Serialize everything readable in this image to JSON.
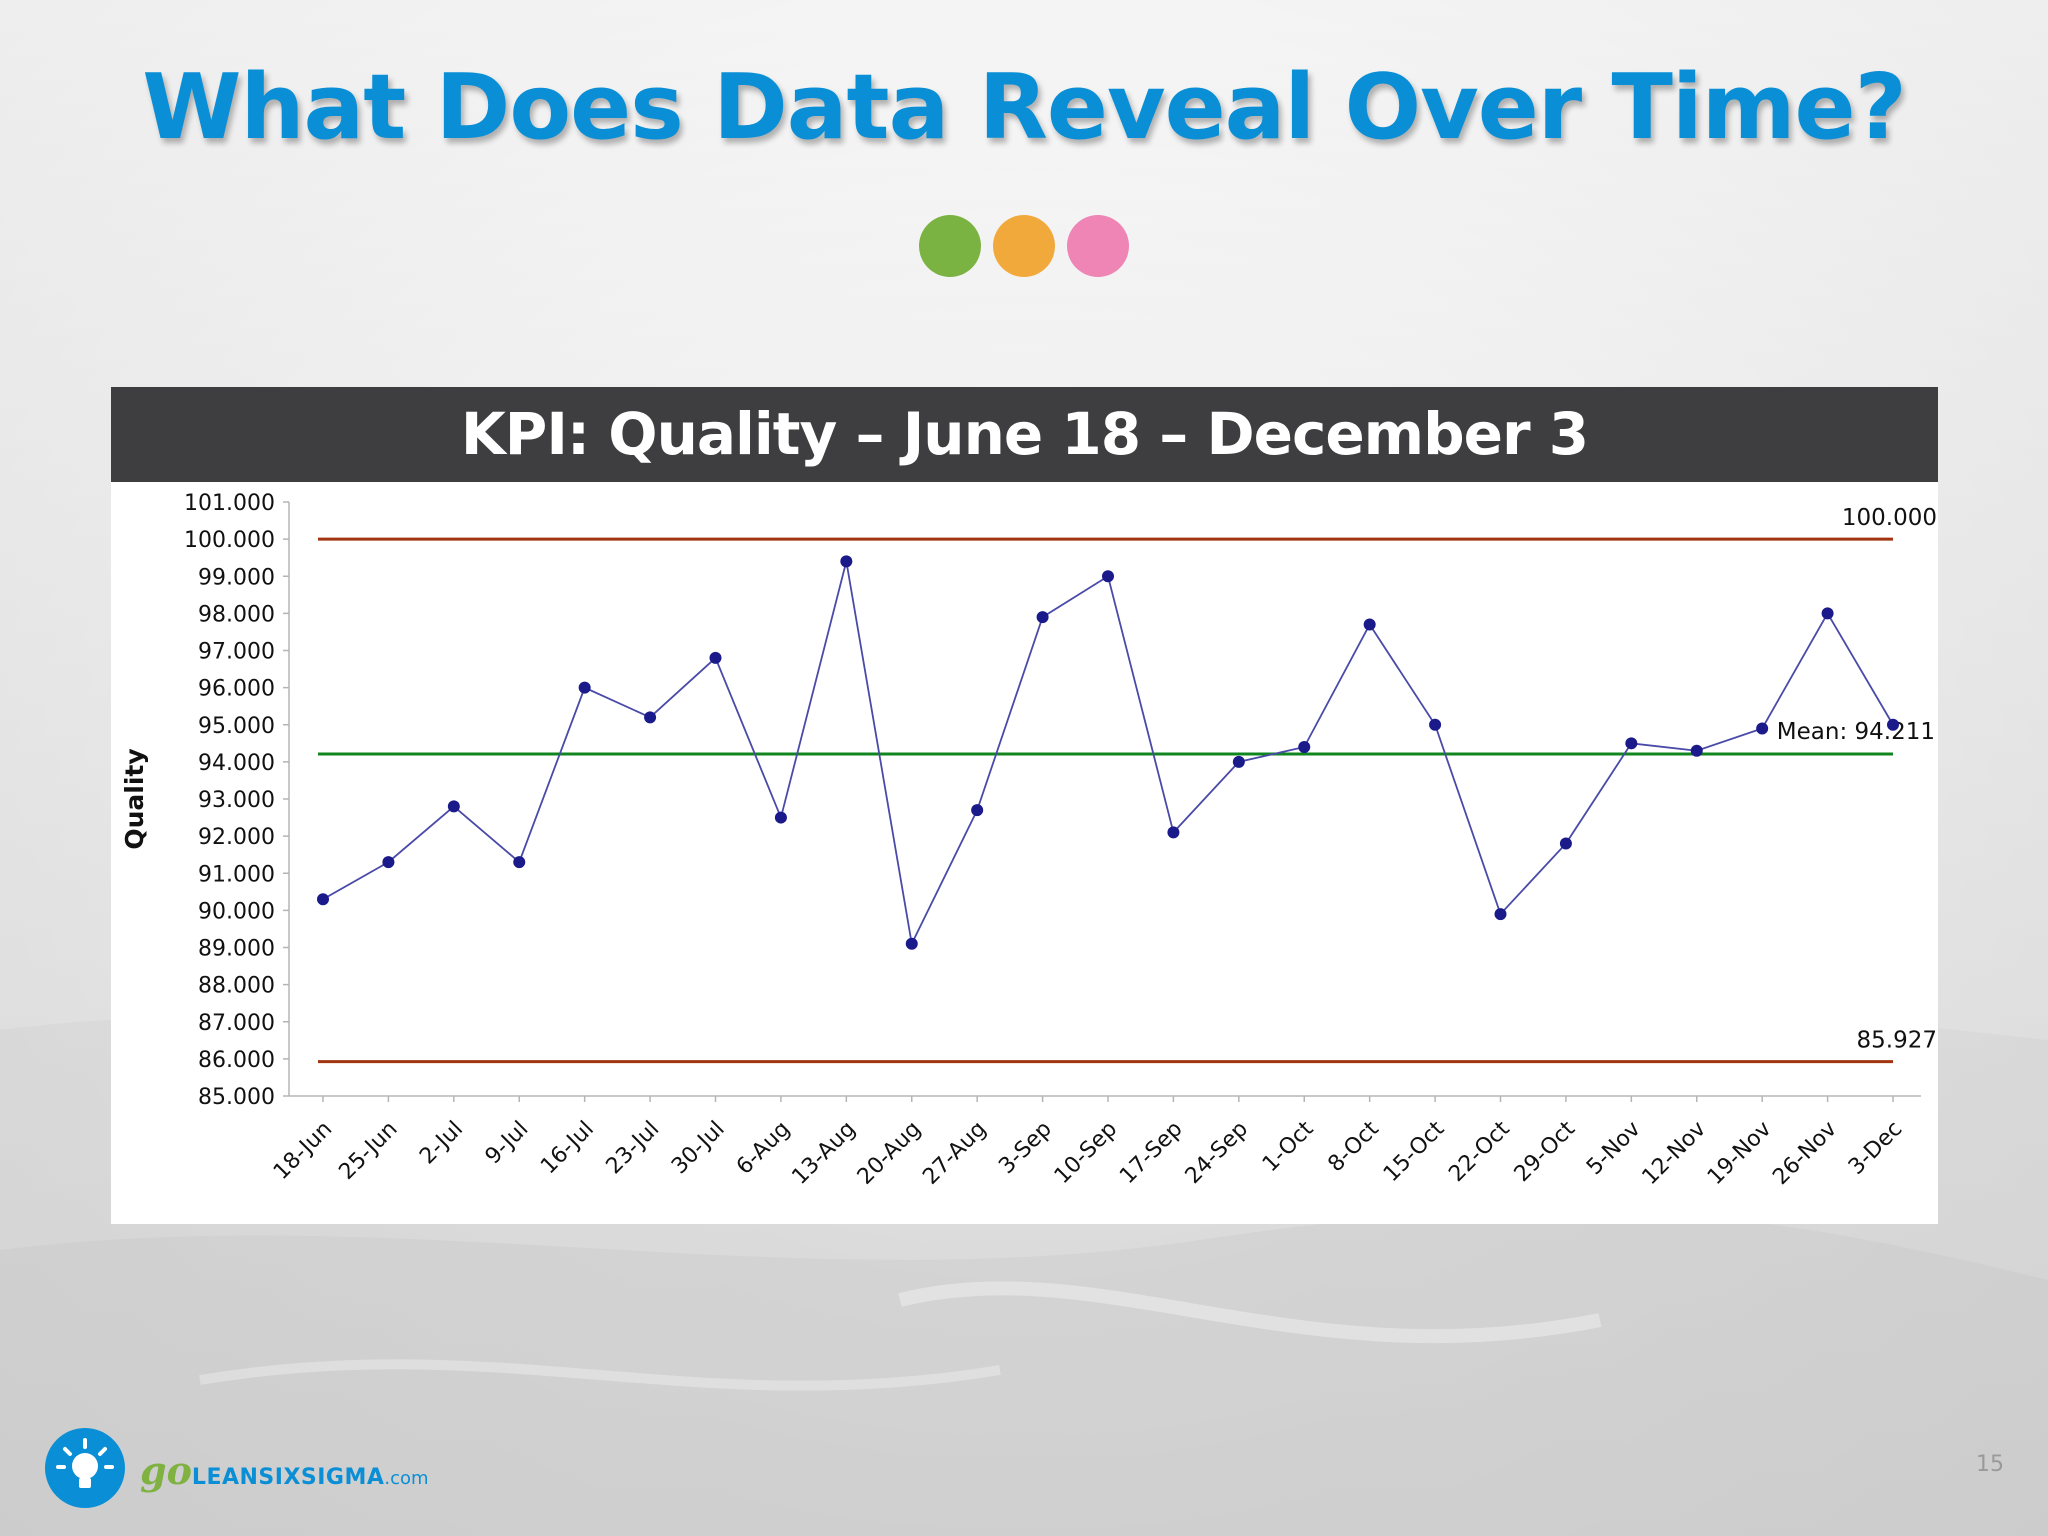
{
  "slide": {
    "title": "What Does Data Reveal Over Time?",
    "dot_colors": [
      "#7bb343",
      "#f2a93b",
      "#ee85b5"
    ],
    "page_number": "15"
  },
  "footer": {
    "brand_prefix": "go",
    "brand_name": "LEANSIXSIGMA",
    "brand_suffix": ".com"
  },
  "chart_data": {
    "type": "line",
    "title": "KPI: Quality – June 18 – December 3",
    "ylabel": "Quality",
    "xlabel": "",
    "ylim": [
      85,
      101
    ],
    "y_ticks": [
      "85.000",
      "86.000",
      "87.000",
      "88.000",
      "89.000",
      "90.000",
      "91.000",
      "92.000",
      "93.000",
      "94.000",
      "95.000",
      "96.000",
      "97.000",
      "98.000",
      "99.000",
      "100.000",
      "101.000"
    ],
    "categories": [
      "18-Jun",
      "25-Jun",
      "2-Jul",
      "9-Jul",
      "16-Jul",
      "23-Jul",
      "30-Jul",
      "6-Aug",
      "13-Aug",
      "20-Aug",
      "27-Aug",
      "3-Sep",
      "10-Sep",
      "17-Sep",
      "24-Sep",
      "1-Oct",
      "8-Oct",
      "15-Oct",
      "22-Oct",
      "29-Oct",
      "5-Nov",
      "12-Nov",
      "19-Nov",
      "26-Nov",
      "3-Dec"
    ],
    "series": [
      {
        "values": [
          90.3,
          91.3,
          92.8,
          91.3,
          96.0,
          95.2,
          96.8,
          92.5,
          99.4,
          89.1,
          92.7,
          97.9,
          99.0,
          92.1,
          94.0,
          94.4,
          97.7,
          95.0,
          89.9,
          91.8,
          94.5,
          94.3,
          94.9,
          98.0,
          95.0
        ],
        "color": "#1a1a8a"
      }
    ],
    "reference_lines": [
      {
        "label": "100.000",
        "value": 100.0,
        "color": "#a0350f"
      },
      {
        "label": "Mean: 94.211",
        "value": 94.211,
        "color": "#11851f"
      },
      {
        "label": "85.927",
        "value": 85.927,
        "color": "#a0350f"
      }
    ],
    "grid": false,
    "legend": "none"
  }
}
